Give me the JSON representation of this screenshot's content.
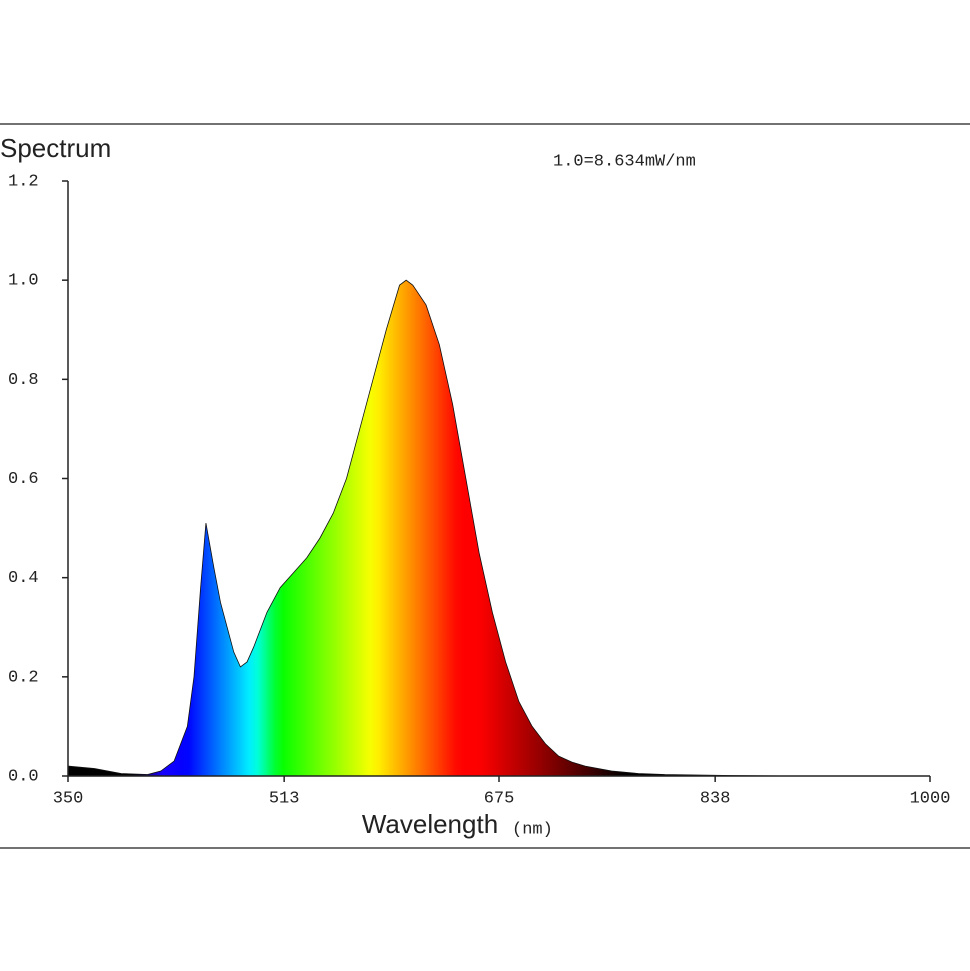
{
  "chart_data": {
    "type": "area",
    "title": "Spectrum",
    "annotation": "1.0=8.634mW/nm",
    "xlabel": "Wavelength",
    "xlabel_unit": "(nm)",
    "x": [
      350,
      370,
      390,
      410,
      420,
      430,
      440,
      445,
      450,
      454,
      460,
      465,
      470,
      475,
      480,
      485,
      490,
      500,
      510,
      520,
      530,
      540,
      550,
      560,
      570,
      580,
      590,
      600,
      605,
      610,
      620,
      630,
      640,
      650,
      660,
      670,
      680,
      690,
      700,
      710,
      720,
      730,
      740,
      760,
      780,
      800,
      850,
      900,
      1000
    ],
    "values": [
      0.02,
      0.015,
      0.005,
      0.003,
      0.01,
      0.03,
      0.1,
      0.2,
      0.38,
      0.51,
      0.42,
      0.35,
      0.3,
      0.25,
      0.22,
      0.23,
      0.26,
      0.33,
      0.38,
      0.41,
      0.44,
      0.48,
      0.53,
      0.6,
      0.7,
      0.8,
      0.9,
      0.99,
      1.0,
      0.99,
      0.95,
      0.87,
      0.75,
      0.6,
      0.45,
      0.33,
      0.23,
      0.15,
      0.1,
      0.065,
      0.04,
      0.028,
      0.02,
      0.01,
      0.005,
      0.003,
      0.001,
      0,
      0
    ],
    "xlim": [
      350,
      1000
    ],
    "xticks": [
      350,
      513,
      675,
      838,
      1000
    ],
    "ylim": [
      0,
      1.2
    ],
    "yticks": [
      {
        "value": 0,
        "label": "0.0"
      },
      0.2,
      0.4,
      0.6,
      0.8,
      {
        "value": 1,
        "label": "1.0"
      },
      1.2
    ]
  }
}
